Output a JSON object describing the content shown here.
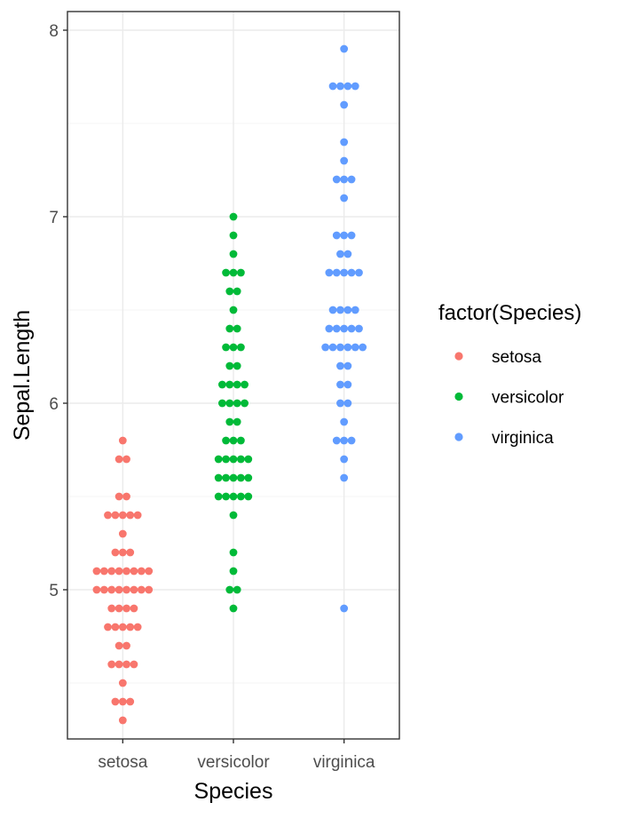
{
  "chart_data": {
    "type": "scatter",
    "xlabel": "Species",
    "ylabel": "Sepal.Length",
    "categories": [
      "setosa",
      "versicolor",
      "virginica"
    ],
    "ylim": [
      4.2,
      8.1
    ],
    "yticks": [
      5,
      6,
      7,
      8
    ],
    "grid": true,
    "legend": {
      "title": "factor(Species)",
      "placement": "right"
    },
    "series": [
      {
        "name": "setosa",
        "color": "#F8766D",
        "values": [
          5.1,
          4.9,
          4.7,
          4.6,
          5.0,
          5.4,
          4.6,
          5.0,
          4.4,
          4.9,
          5.4,
          4.8,
          4.8,
          4.3,
          5.8,
          5.7,
          5.4,
          5.1,
          5.7,
          5.1,
          5.4,
          5.1,
          4.6,
          5.1,
          4.8,
          5.0,
          5.0,
          5.2,
          5.2,
          4.7,
          4.8,
          5.4,
          5.2,
          5.5,
          4.9,
          5.0,
          5.5,
          4.9,
          4.4,
          5.1,
          5.0,
          4.5,
          4.4,
          5.0,
          5.1,
          4.8,
          5.1,
          4.6,
          5.3,
          5.0
        ]
      },
      {
        "name": "versicolor",
        "color": "#00BA38",
        "values": [
          7.0,
          6.4,
          6.9,
          5.5,
          6.5,
          5.7,
          6.3,
          4.9,
          6.6,
          5.2,
          5.0,
          5.9,
          6.0,
          6.1,
          5.6,
          6.7,
          5.6,
          5.8,
          6.2,
          5.6,
          5.9,
          6.1,
          6.3,
          6.1,
          6.4,
          6.6,
          6.8,
          6.7,
          6.0,
          5.7,
          5.5,
          5.5,
          5.8,
          6.0,
          5.4,
          6.0,
          6.7,
          6.3,
          5.6,
          5.5,
          5.5,
          6.1,
          5.8,
          5.0,
          5.6,
          5.7,
          5.7,
          6.2,
          5.1,
          5.7
        ]
      },
      {
        "name": "virginica",
        "color": "#619CFF",
        "values": [
          6.3,
          5.8,
          7.1,
          6.3,
          6.5,
          7.6,
          4.9,
          7.3,
          6.7,
          7.2,
          6.5,
          6.4,
          6.8,
          5.7,
          5.8,
          6.4,
          6.5,
          7.7,
          7.7,
          6.0,
          6.9,
          5.6,
          7.7,
          6.3,
          6.7,
          7.2,
          6.2,
          6.1,
          6.4,
          7.2,
          7.4,
          7.9,
          6.4,
          6.3,
          6.1,
          7.7,
          6.3,
          6.4,
          6.0,
          6.9,
          6.7,
          6.9,
          5.8,
          6.8,
          6.7,
          6.7,
          6.3,
          6.5,
          6.2,
          5.9
        ]
      }
    ]
  }
}
